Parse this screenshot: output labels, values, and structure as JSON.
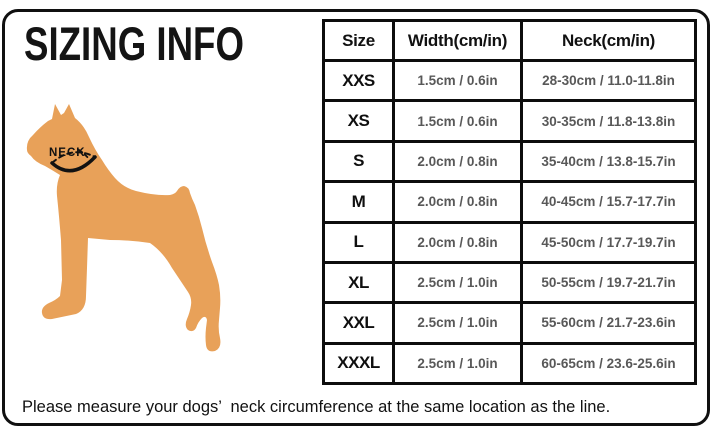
{
  "page": {
    "title": "SIZING INFO",
    "caption": "Please measure your dogs’  neck circumference at the same location as the line."
  },
  "diagram": {
    "neck_label": "NECK",
    "dog_color": "#E8A159",
    "line_color": "#121212"
  },
  "table": {
    "headers": [
      "Size",
      "Width(cm/in)",
      "Neck(cm/in)"
    ],
    "rows": [
      {
        "size": "XXS",
        "width": "1.5cm / 0.6in",
        "neck": "28-30cm / 11.0-11.8in"
      },
      {
        "size": "XS",
        "width": "1.5cm / 0.6in",
        "neck": "30-35cm / 11.8-13.8in"
      },
      {
        "size": "S",
        "width": "2.0cm / 0.8in",
        "neck": "35-40cm / 13.8-15.7in"
      },
      {
        "size": "M",
        "width": "2.0cm / 0.8in",
        "neck": "40-45cm / 15.7-17.7in"
      },
      {
        "size": "L",
        "width": "2.0cm / 0.8in",
        "neck": "45-50cm / 17.7-19.7in"
      },
      {
        "size": "XL",
        "width": "2.5cm / 1.0in",
        "neck": "50-55cm / 19.7-21.7in"
      },
      {
        "size": "XXL",
        "width": "2.5cm / 1.0in",
        "neck": "55-60cm / 21.7-23.6in"
      },
      {
        "size": "XXXL",
        "width": "2.5cm / 1.0in",
        "neck": "60-65cm / 23.6-25.6in"
      }
    ]
  }
}
